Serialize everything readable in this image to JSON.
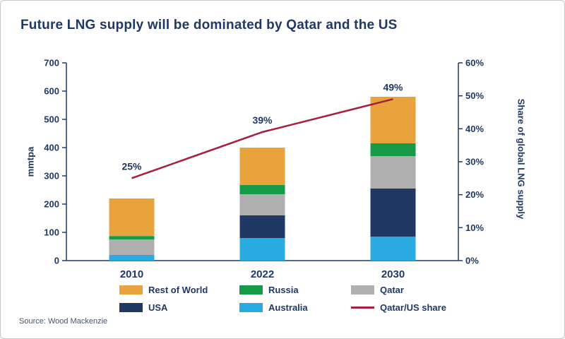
{
  "title": "Future LNG supply will be dominated by Qatar and the US",
  "source": "Source: Wood Mackenzie",
  "colors": {
    "title": "#1F3864",
    "axis": "#1F3864",
    "background": "#FFFFFF",
    "border": "#C9C9C9"
  },
  "chart_data": {
    "type": "bar",
    "stacked": true,
    "categories": [
      "2010",
      "2022",
      "2030"
    ],
    "series": [
      {
        "name": "Australia",
        "color": "#29ABE2",
        "values": [
          20,
          80,
          85
        ]
      },
      {
        "name": "USA",
        "color": "#1F3864",
        "values": [
          0,
          80,
          170
        ]
      },
      {
        "name": "Qatar",
        "color": "#AFAFAF",
        "values": [
          55,
          75,
          115
        ]
      },
      {
        "name": "Russia",
        "color": "#159B48",
        "values": [
          12,
          33,
          45
        ]
      },
      {
        "name": "Rest of World",
        "color": "#E8A33C",
        "values": [
          133,
          132,
          165
        ]
      }
    ],
    "line": {
      "name": "Qatar/US share",
      "color": "#A91D3D",
      "axis": "right",
      "values": [
        25,
        39,
        49
      ],
      "labels": [
        "25%",
        "39%",
        "49%"
      ]
    },
    "ylabel": "mmtpa",
    "ylabel_right": "Share of global LNG supply",
    "ylim": [
      0,
      700
    ],
    "ytick_step": 100,
    "ylim_right": [
      0,
      60
    ],
    "ytick_step_right": 10,
    "grid": false,
    "legend_position": "bottom",
    "legend": [
      {
        "label": "Rest of World",
        "color": "#E8A33C",
        "type": "box"
      },
      {
        "label": "Russia",
        "color": "#159B48",
        "type": "box"
      },
      {
        "label": "Qatar",
        "color": "#AFAFAF",
        "type": "box"
      },
      {
        "label": "USA",
        "color": "#1F3864",
        "type": "box"
      },
      {
        "label": "Australia",
        "color": "#29ABE2",
        "type": "box"
      },
      {
        "label": "Qatar/US share",
        "color": "#A91D3D",
        "type": "line"
      }
    ]
  }
}
